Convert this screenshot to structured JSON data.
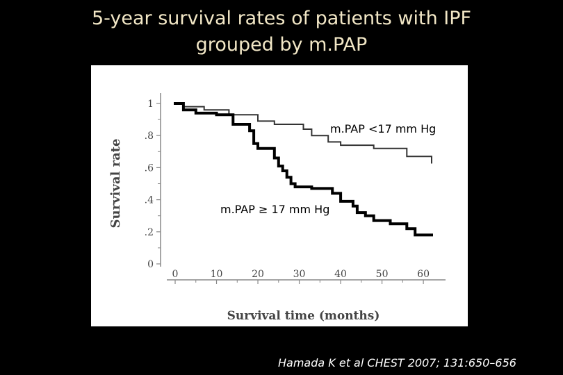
{
  "slide": {
    "title_line1": "5-year survival rates of patients  with IPF",
    "title_line2": "grouped by m.PAP",
    "citation": "Hamada K et al CHEST 2007; 131:650–656"
  },
  "chart_data": {
    "type": "line",
    "step": true,
    "title": "",
    "xlabel": "Survival time (months)",
    "ylabel": "Survival rate",
    "xlim": [
      0,
      62
    ],
    "ylim": [
      0,
      1
    ],
    "xticks": [
      0,
      10,
      20,
      30,
      40,
      50,
      60
    ],
    "xtick_labels": [
      "0",
      "10",
      "20",
      "30",
      "40",
      "50",
      "60"
    ],
    "yticks": [
      0,
      0.2,
      0.4,
      0.6,
      0.8,
      1
    ],
    "ytick_labels": [
      "0",
      ".2",
      ".4",
      ".6",
      ".8",
      "1"
    ],
    "series": [
      {
        "name": "m.PAP  <17 mm Hg",
        "color": "#333333",
        "stroke_weight": "thin",
        "x": [
          0,
          2,
          7,
          13,
          20,
          24,
          31,
          33,
          37,
          40,
          45,
          48,
          56,
          62
        ],
        "y": [
          1.0,
          0.98,
          0.96,
          0.93,
          0.89,
          0.87,
          0.84,
          0.8,
          0.76,
          0.74,
          0.74,
          0.72,
          0.67,
          0.63
        ]
      },
      {
        "name": "m.PAP ≥ 17 mm Hg",
        "color": "#000000",
        "stroke_weight": "thick",
        "x": [
          0,
          2,
          5,
          10,
          14,
          18,
          19,
          20,
          24,
          25,
          26,
          27,
          28,
          29,
          33,
          38,
          40,
          43,
          44,
          46,
          48,
          52,
          56,
          58,
          62
        ],
        "y": [
          1.0,
          0.96,
          0.94,
          0.93,
          0.87,
          0.83,
          0.75,
          0.72,
          0.66,
          0.61,
          0.58,
          0.54,
          0.5,
          0.48,
          0.47,
          0.44,
          0.39,
          0.36,
          0.32,
          0.3,
          0.27,
          0.25,
          0.22,
          0.18,
          0.18
        ]
      }
    ]
  }
}
